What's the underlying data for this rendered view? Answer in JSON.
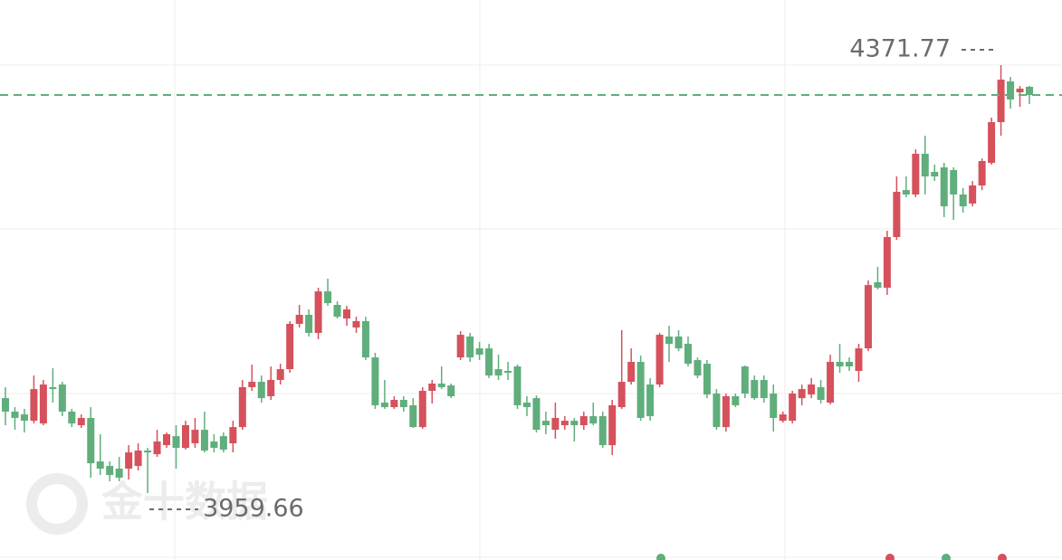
{
  "chart_data": {
    "type": "candlestick",
    "up_color": "#d5515c",
    "down_color": "#5fae7c",
    "grid": true,
    "watermark": "金十数据",
    "ylim": [
      3895.2,
      4434.5
    ],
    "open": [
      4051.1,
      4038.1,
      4035.4,
      4029.3,
      4026.7,
      4061.6,
      4064.2,
      4038.1,
      4025.0,
      4032.0,
      3990.1,
      3985.8,
      3983.2,
      3983.2,
      3985.8,
      4000.6,
      3997.1,
      4005.8,
      4014.5,
      4003.2,
      4007.6,
      4020.6,
      4009.3,
      4014.5,
      4007.6,
      4023.2,
      4061.6,
      4066.8,
      4052.9,
      4068.6,
      4079.0,
      4122.6,
      4131.3,
      4113.9,
      4153.9,
      4140.9,
      4127.8,
      4119.1,
      4125.2,
      4090.3,
      4046.8,
      4042.4,
      4049.4,
      4044.2,
      4023.2,
      4058.1,
      4065.1,
      4063.3,
      4090.3,
      4110.4,
      4099.0,
      4099.0,
      4079.0,
      4077.3,
      4081.6,
      4046.8,
      4051.1,
      4029.3,
      4020.6,
      4025.0,
      4029.3,
      4025.0,
      4033.7,
      4033.7,
      4005.8,
      4042.4,
      4066.8,
      4086.0,
      4064.2,
      4064.2,
      4110.4,
      4110.4,
      4103.4,
      4087.7,
      4084.2,
      4055.5,
      4023.2,
      4052.9,
      4081.6,
      4068.6,
      4068.6,
      4055.5,
      4029.3,
      4029.3,
      4051.1,
      4054.6,
      4061.6,
      4046.8,
      4086.0,
      4086.0,
      4077.3,
      4099.0,
      4162.7,
      4157.4,
      4206.2,
      4251.5,
      4247.2,
      4286.4,
      4269.0,
      4273.3,
      4270.7,
      4247.2,
      4238.5,
      4255.9,
      4277.7,
      4316.9,
      4356.1,
      4345.6,
      4350.9
    ],
    "high": [
      4061.6,
      4042.4,
      4040.7,
      4072.9,
      4068.6,
      4079.9,
      4066.8,
      4040.7,
      4035.4,
      4042.4,
      4016.3,
      3990.1,
      3994.5,
      4005.8,
      4007.6,
      4003.2,
      4020.6,
      4018.0,
      4025.0,
      4029.3,
      4032.0,
      4038.1,
      4016.3,
      4018.0,
      4029.3,
      4068.6,
      4083.4,
      4072.9,
      4081.6,
      4084.2,
      4125.2,
      4140.9,
      4136.5,
      4157.4,
      4166.1,
      4144.4,
      4140.0,
      4129.5,
      4129.5,
      4094.7,
      4068.6,
      4052.9,
      4052.9,
      4051.1,
      4061.6,
      4068.6,
      4081.6,
      4065.1,
      4115.6,
      4113.9,
      4105.1,
      4103.4,
      4092.9,
      4086.0,
      4083.4,
      4052.9,
      4053.7,
      4038.1,
      4046.8,
      4033.7,
      4032.0,
      4038.1,
      4046.8,
      4038.1,
      4049.4,
      4116.5,
      4099.0,
      4092.1,
      4070.3,
      4113.9,
      4120.8,
      4116.5,
      4110.4,
      4090.3,
      4087.7,
      4059.8,
      4055.5,
      4055.5,
      4082.5,
      4072.9,
      4072.9,
      4064.2,
      4038.1,
      4058.1,
      4064.2,
      4070.3,
      4068.6,
      4092.9,
      4103.4,
      4090.3,
      4103.4,
      4164.4,
      4177.5,
      4212.3,
      4264.6,
      4264.6,
      4290.7,
      4303.8,
      4275.9,
      4277.7,
      4273.3,
      4253.3,
      4260.2,
      4282.0,
      4321.2,
      4371.77,
      4360.4,
      4351.7,
      4351.7
    ],
    "low": [
      4025.0,
      4020.6,
      4018.0,
      4026.7,
      4025.0,
      4046.8,
      4033.7,
      4023.2,
      4022.4,
      3974.5,
      3977.1,
      3971.0,
      3971.0,
      3972.7,
      3981.4,
      3959.66,
      3994.5,
      4003.2,
      3983.2,
      4001.5,
      4003.2,
      3998.8,
      3998.8,
      3998.8,
      3998.8,
      4020.6,
      4058.1,
      4046.8,
      4049.4,
      4064.2,
      4075.5,
      4119.1,
      4110.4,
      4107.8,
      4140.0,
      4127.8,
      4120.8,
      4113.9,
      4087.7,
      4040.7,
      4040.7,
      4040.7,
      4038.1,
      4022.4,
      4021.5,
      4045.9,
      4059.8,
      4051.1,
      4087.7,
      4086.0,
      4087.7,
      4070.3,
      4068.6,
      4068.6,
      4040.7,
      4033.7,
      4018.0,
      4016.3,
      4011.9,
      4020.6,
      4009.3,
      4020.6,
      4025.0,
      4003.2,
      3996.2,
      4040.7,
      4064.2,
      4029.3,
      4029.3,
      4061.6,
      4086.0,
      4096.4,
      4081.6,
      4070.3,
      4051.1,
      4020.6,
      4018.9,
      4042.4,
      4051.1,
      4049.4,
      4046.8,
      4018.9,
      4027.6,
      4026.7,
      4044.2,
      4051.1,
      4045.9,
      4045.0,
      4075.5,
      4077.3,
      4066.8,
      4096.4,
      4155.7,
      4150.5,
      4203.6,
      4244.6,
      4244.6,
      4247.2,
      4260.2,
      4225.4,
      4222.8,
      4229.7,
      4235.8,
      4251.5,
      4275.9,
      4303.8,
      4329.9,
      4331.7,
      4334.3
    ],
    "close": [
      4038.1,
      4032.0,
      4029.3,
      4059.8,
      4064.2,
      4059.8,
      4038.1,
      4026.7,
      4032.0,
      3988.4,
      3983.2,
      3977.1,
      3974.5,
      3998.8,
      4000.6,
      3998.8,
      4009.3,
      4016.3,
      4003.2,
      4025.0,
      4020.6,
      4000.6,
      4003.2,
      4001.5,
      4023.2,
      4061.6,
      4066.8,
      4051.1,
      4068.6,
      4079.0,
      4122.6,
      4131.3,
      4113.9,
      4153.9,
      4142.6,
      4129.5,
      4136.5,
      4125.2,
      4090.3,
      4044.2,
      4042.4,
      4049.4,
      4042.4,
      4023.2,
      4058.1,
      4065.1,
      4061.6,
      4052.9,
      4112.1,
      4090.3,
      4092.9,
      4072.9,
      4072.9,
      4075.5,
      4044.2,
      4042.4,
      4020.6,
      4025.0,
      4032.0,
      4029.3,
      4025.0,
      4033.7,
      4026.7,
      4005.8,
      4044.2,
      4066.8,
      4086.0,
      4032.0,
      4033.7,
      4112.1,
      4103.4,
      4099.0,
      4084.2,
      4072.9,
      4054.6,
      4023.2,
      4052.9,
      4044.2,
      4055.5,
      4051.1,
      4051.1,
      4032.0,
      4035.4,
      4055.5,
      4059.8,
      4064.2,
      4049.4,
      4086.0,
      4081.6,
      4081.6,
      4099.0,
      4160.0,
      4157.4,
      4206.2,
      4249.8,
      4247.2,
      4286.4,
      4264.6,
      4264.6,
      4235.8,
      4247.2,
      4235.8,
      4255.9,
      4279.4,
      4316.9,
      4357.8,
      4338.7,
      4349.1,
      4343.0
    ],
    "annotations": [
      {
        "value": 4371.77,
        "label": "4371.77",
        "position": "above"
      },
      {
        "value": 3959.66,
        "label": "3959.66",
        "position": "below"
      }
    ]
  }
}
